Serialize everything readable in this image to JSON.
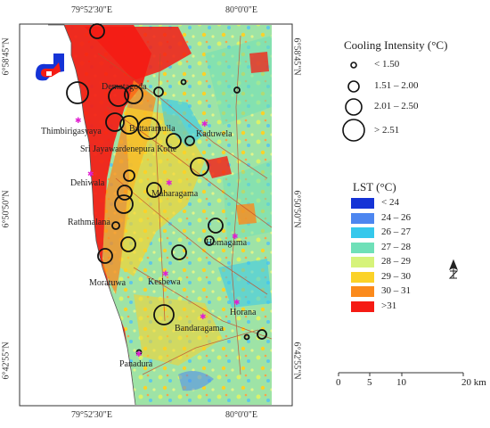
{
  "map": {
    "coordinates": {
      "lon_left": "79°52'30\"E",
      "lon_right": "80°0'0\"E",
      "lat_top": "6°58'45\"N",
      "lat_mid": "6°50'50\"N",
      "lat_bottom": "6°42'55\"N"
    },
    "places": [
      "Dematagoda",
      "Thimbirigasyaya",
      "Battaramulla",
      "Kaduwela",
      "Sri Jayawardenepura Kotte",
      "Dehiwala",
      "Maharagama",
      "Rathmalana",
      "Homagama",
      "Moratuwa",
      "Kesbewa",
      "Horana",
      "Bandaragama",
      "Panadura"
    ]
  },
  "legend": {
    "cooling_title": "Cooling Intensity (°C)",
    "cooling_classes": [
      "< 1.50",
      "1.51 – 2.00",
      "2.01 – 2.50",
      "> 2.51"
    ],
    "lst_title": "LST (°C)",
    "lst_classes": [
      {
        "label": "< 24",
        "color": "#1533d6"
      },
      {
        "label": "24 – 26",
        "color": "#4d86f0"
      },
      {
        "label": "26 – 27",
        "color": "#35c8ec"
      },
      {
        "label": "27 – 28",
        "color": "#6fe0b8"
      },
      {
        "label": "28 – 29",
        "color": "#d6f37a"
      },
      {
        "label": "29 – 30",
        "color": "#fbd228"
      },
      {
        "label": "30 – 31",
        "color": "#fb8a1c"
      },
      {
        "label": ">31",
        "color": "#f51b14"
      }
    ]
  },
  "scalebar": {
    "ticks": [
      "0",
      "5",
      "10",
      "20 km"
    ]
  },
  "north_arrow": {
    "icon": "north-arrow-icon"
  }
}
